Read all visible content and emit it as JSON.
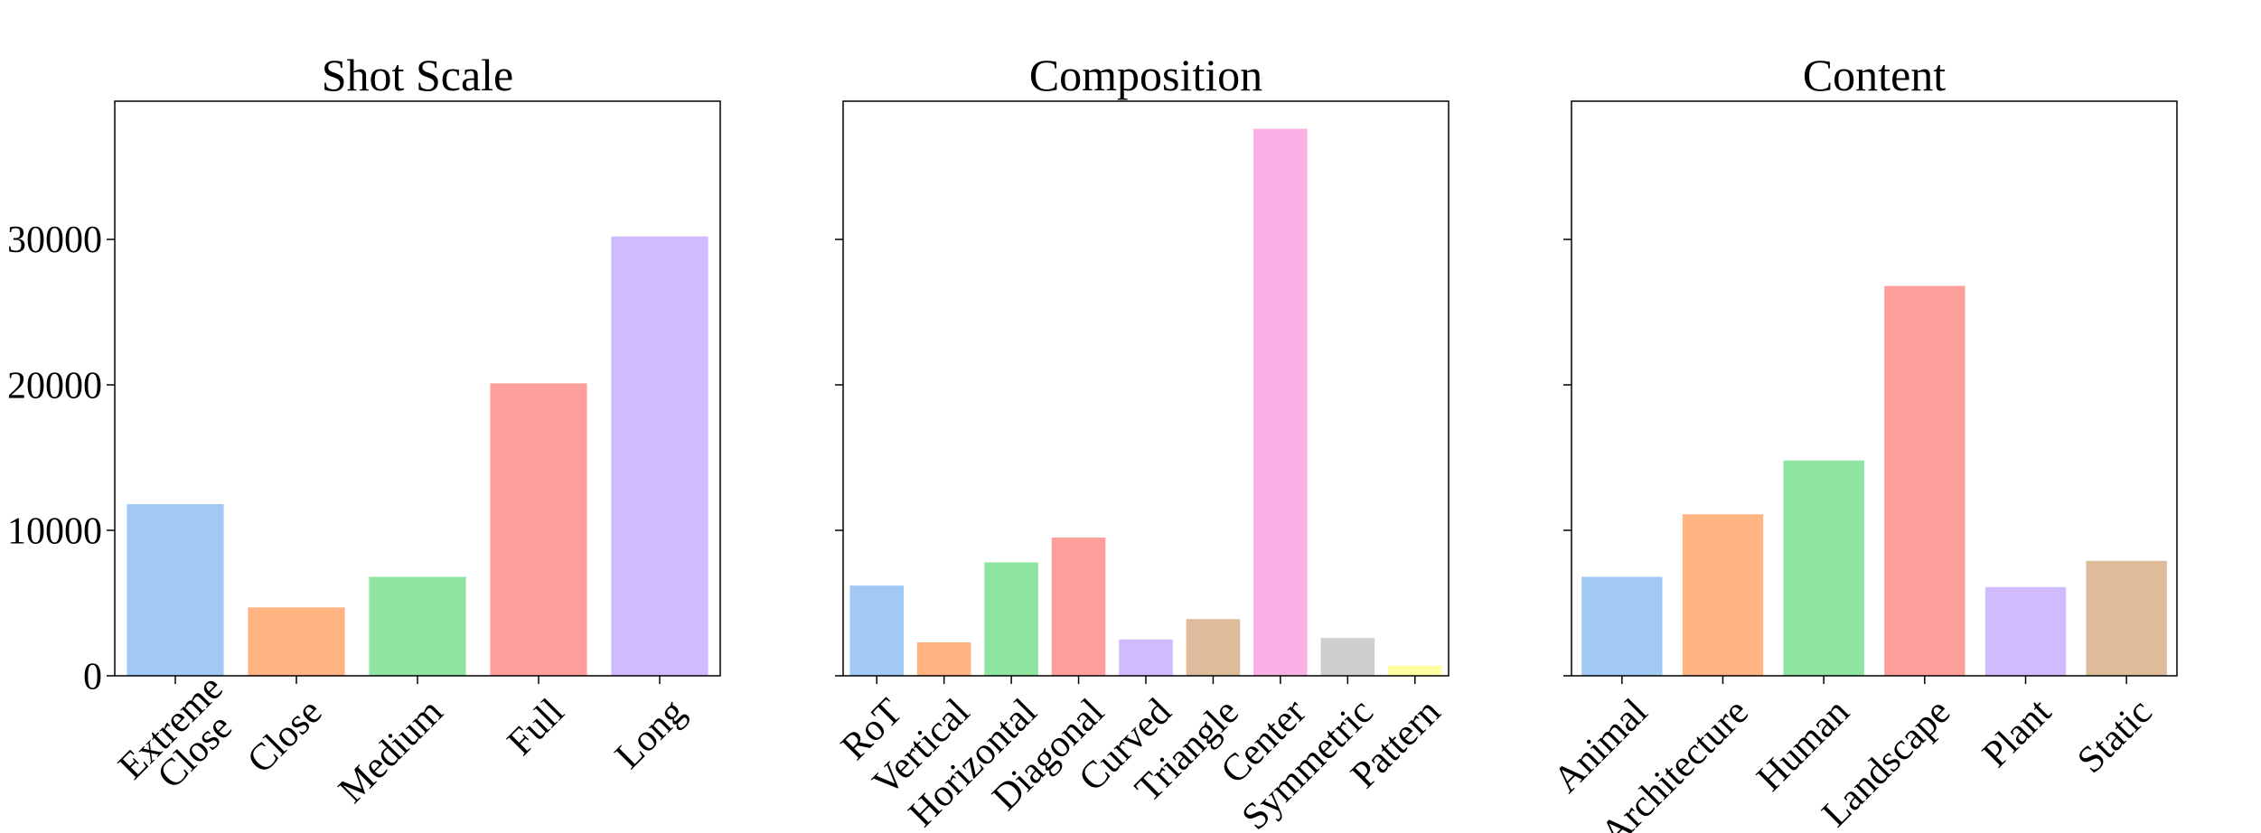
{
  "figure": {
    "background": "#ffffff",
    "palette": [
      "#a1c9f4",
      "#ffb482",
      "#8de5a1",
      "#ff9f9b",
      "#d0bbff",
      "#debb9b",
      "#fab0e4",
      "#cfcfcf",
      "#fffea3"
    ]
  },
  "chart_data": [
    {
      "type": "bar",
      "title": "Shot Scale",
      "xlabel": "",
      "ylabel": "",
      "categories": [
        "Extreme\nClose",
        "Close",
        "Medium",
        "Full",
        "Long"
      ],
      "values": [
        11800,
        4700,
        6800,
        20100,
        30200
      ],
      "ylim": [
        0,
        39500
      ],
      "yticks": [
        0,
        10000,
        20000,
        30000
      ],
      "ytick_labels": [
        "0",
        "10000",
        "20000",
        "30000"
      ],
      "show_ytick_labels": true,
      "colors": [
        "#a1c9f4",
        "#ffb482",
        "#8de5a1",
        "#ff9f9b",
        "#d0bbff"
      ],
      "grid": false
    },
    {
      "type": "bar",
      "title": "Composition",
      "xlabel": "",
      "ylabel": "",
      "categories": [
        "RoT",
        "Vertical",
        "Horizontal",
        "Diagonal",
        "Curved",
        "Triangle",
        "Center",
        "Symmetric",
        "Pattern"
      ],
      "values": [
        6200,
        2300,
        7800,
        9500,
        2500,
        3900,
        37600,
        2600,
        700
      ],
      "ylim": [
        0,
        39500
      ],
      "yticks": [
        0,
        10000,
        20000,
        30000
      ],
      "ytick_labels": [
        "0",
        "10000",
        "20000",
        "30000"
      ],
      "show_ytick_labels": false,
      "colors": [
        "#a1c9f4",
        "#ffb482",
        "#8de5a1",
        "#ff9f9b",
        "#d0bbff",
        "#debb9b",
        "#fab0e4",
        "#cfcfcf",
        "#fffea3"
      ],
      "grid": false
    },
    {
      "type": "bar",
      "title": "Content",
      "xlabel": "",
      "ylabel": "",
      "categories": [
        "Animal",
        "Architecture",
        "Human",
        "Landscape",
        "Plant",
        "Static"
      ],
      "values": [
        6800,
        11100,
        14800,
        26800,
        6100,
        7900
      ],
      "ylim": [
        0,
        39500
      ],
      "yticks": [
        0,
        10000,
        20000,
        30000
      ],
      "ytick_labels": [
        "0",
        "10000",
        "20000",
        "30000"
      ],
      "show_ytick_labels": false,
      "colors": [
        "#a1c9f4",
        "#ffb482",
        "#8de5a1",
        "#ff9f9b",
        "#d0bbff",
        "#debb9b"
      ],
      "grid": false
    }
  ]
}
